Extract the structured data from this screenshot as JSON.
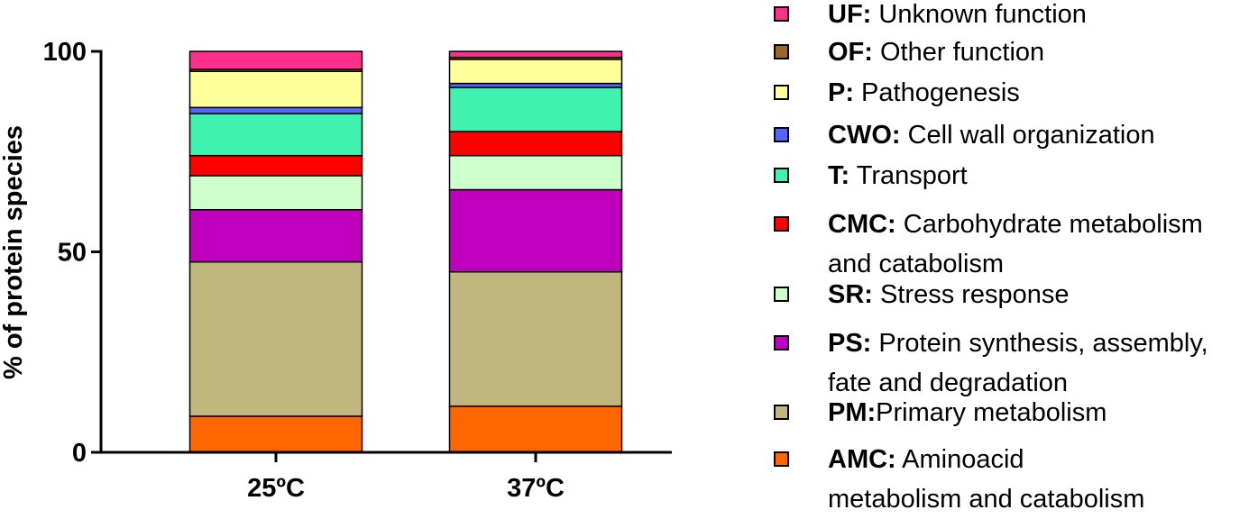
{
  "chart_data": {
    "type": "bar",
    "stacked": true,
    "categories": [
      "25ºC",
      "37ºC"
    ],
    "ylabel": "% of protein species",
    "xlabel": "",
    "ylim": [
      0,
      100
    ],
    "yticks": [
      0,
      50,
      100
    ],
    "grid": false,
    "legend_position": "right",
    "series": [
      {
        "code": "AMC",
        "color": "#FF6600",
        "values": [
          9,
          11.5
        ]
      },
      {
        "code": "PM",
        "color": "#C2B67F",
        "values": [
          38.5,
          33.5
        ]
      },
      {
        "code": "PS",
        "color": "#BF00BF",
        "values": [
          13,
          20.5
        ]
      },
      {
        "code": "SR",
        "color": "#CCFFCC",
        "values": [
          8.5,
          8.5
        ]
      },
      {
        "code": "CMC",
        "color": "#FF0000",
        "values": [
          5,
          6
        ]
      },
      {
        "code": "T",
        "color": "#3FF2B0",
        "values": [
          10.5,
          11
        ]
      },
      {
        "code": "CWO",
        "color": "#5566FF",
        "values": [
          1.5,
          1
        ]
      },
      {
        "code": "P",
        "color": "#FFFF99",
        "values": [
          9,
          6
        ]
      },
      {
        "code": "OF",
        "color": "#99662B",
        "values": [
          0.5,
          0.5
        ]
      },
      {
        "code": "UF",
        "color": "#FF2F8C",
        "values": [
          4.5,
          1.5
        ]
      }
    ]
  },
  "legend": {
    "items": [
      {
        "code": "UF:",
        "lines": [
          " Unknown function"
        ],
        "color": "#FF2F8C"
      },
      {
        "code": "OF:",
        "lines": [
          " Other function"
        ],
        "color": "#99662B"
      },
      {
        "code": "P:",
        "lines": [
          " Pathogenesis"
        ],
        "color": "#FFFF99"
      },
      {
        "code": "CWO:",
        "lines": [
          " Cell wall organization"
        ],
        "color": "#5566FF"
      },
      {
        "code": "T:",
        "lines": [
          " Transport"
        ],
        "color": "#3FF2B0"
      },
      {
        "code": "CMC:",
        "lines": [
          " Carbohydrate metabolism",
          "and catabolism"
        ],
        "color": "#FF0000"
      },
      {
        "code": "SR:",
        "lines": [
          " Stress response"
        ],
        "color": "#CCFFCC"
      },
      {
        "code": "PS:",
        "lines": [
          " Protein synthesis, assembly,",
          "fate and degradation"
        ],
        "color": "#BF00BF"
      },
      {
        "code": "PM:",
        "lines": [
          "Primary metabolism"
        ],
        "color": "#C2B67F"
      },
      {
        "code": "AMC:",
        "lines": [
          " Aminoacid",
          "metabolism and catabolism"
        ],
        "color": "#FF6600"
      }
    ]
  }
}
